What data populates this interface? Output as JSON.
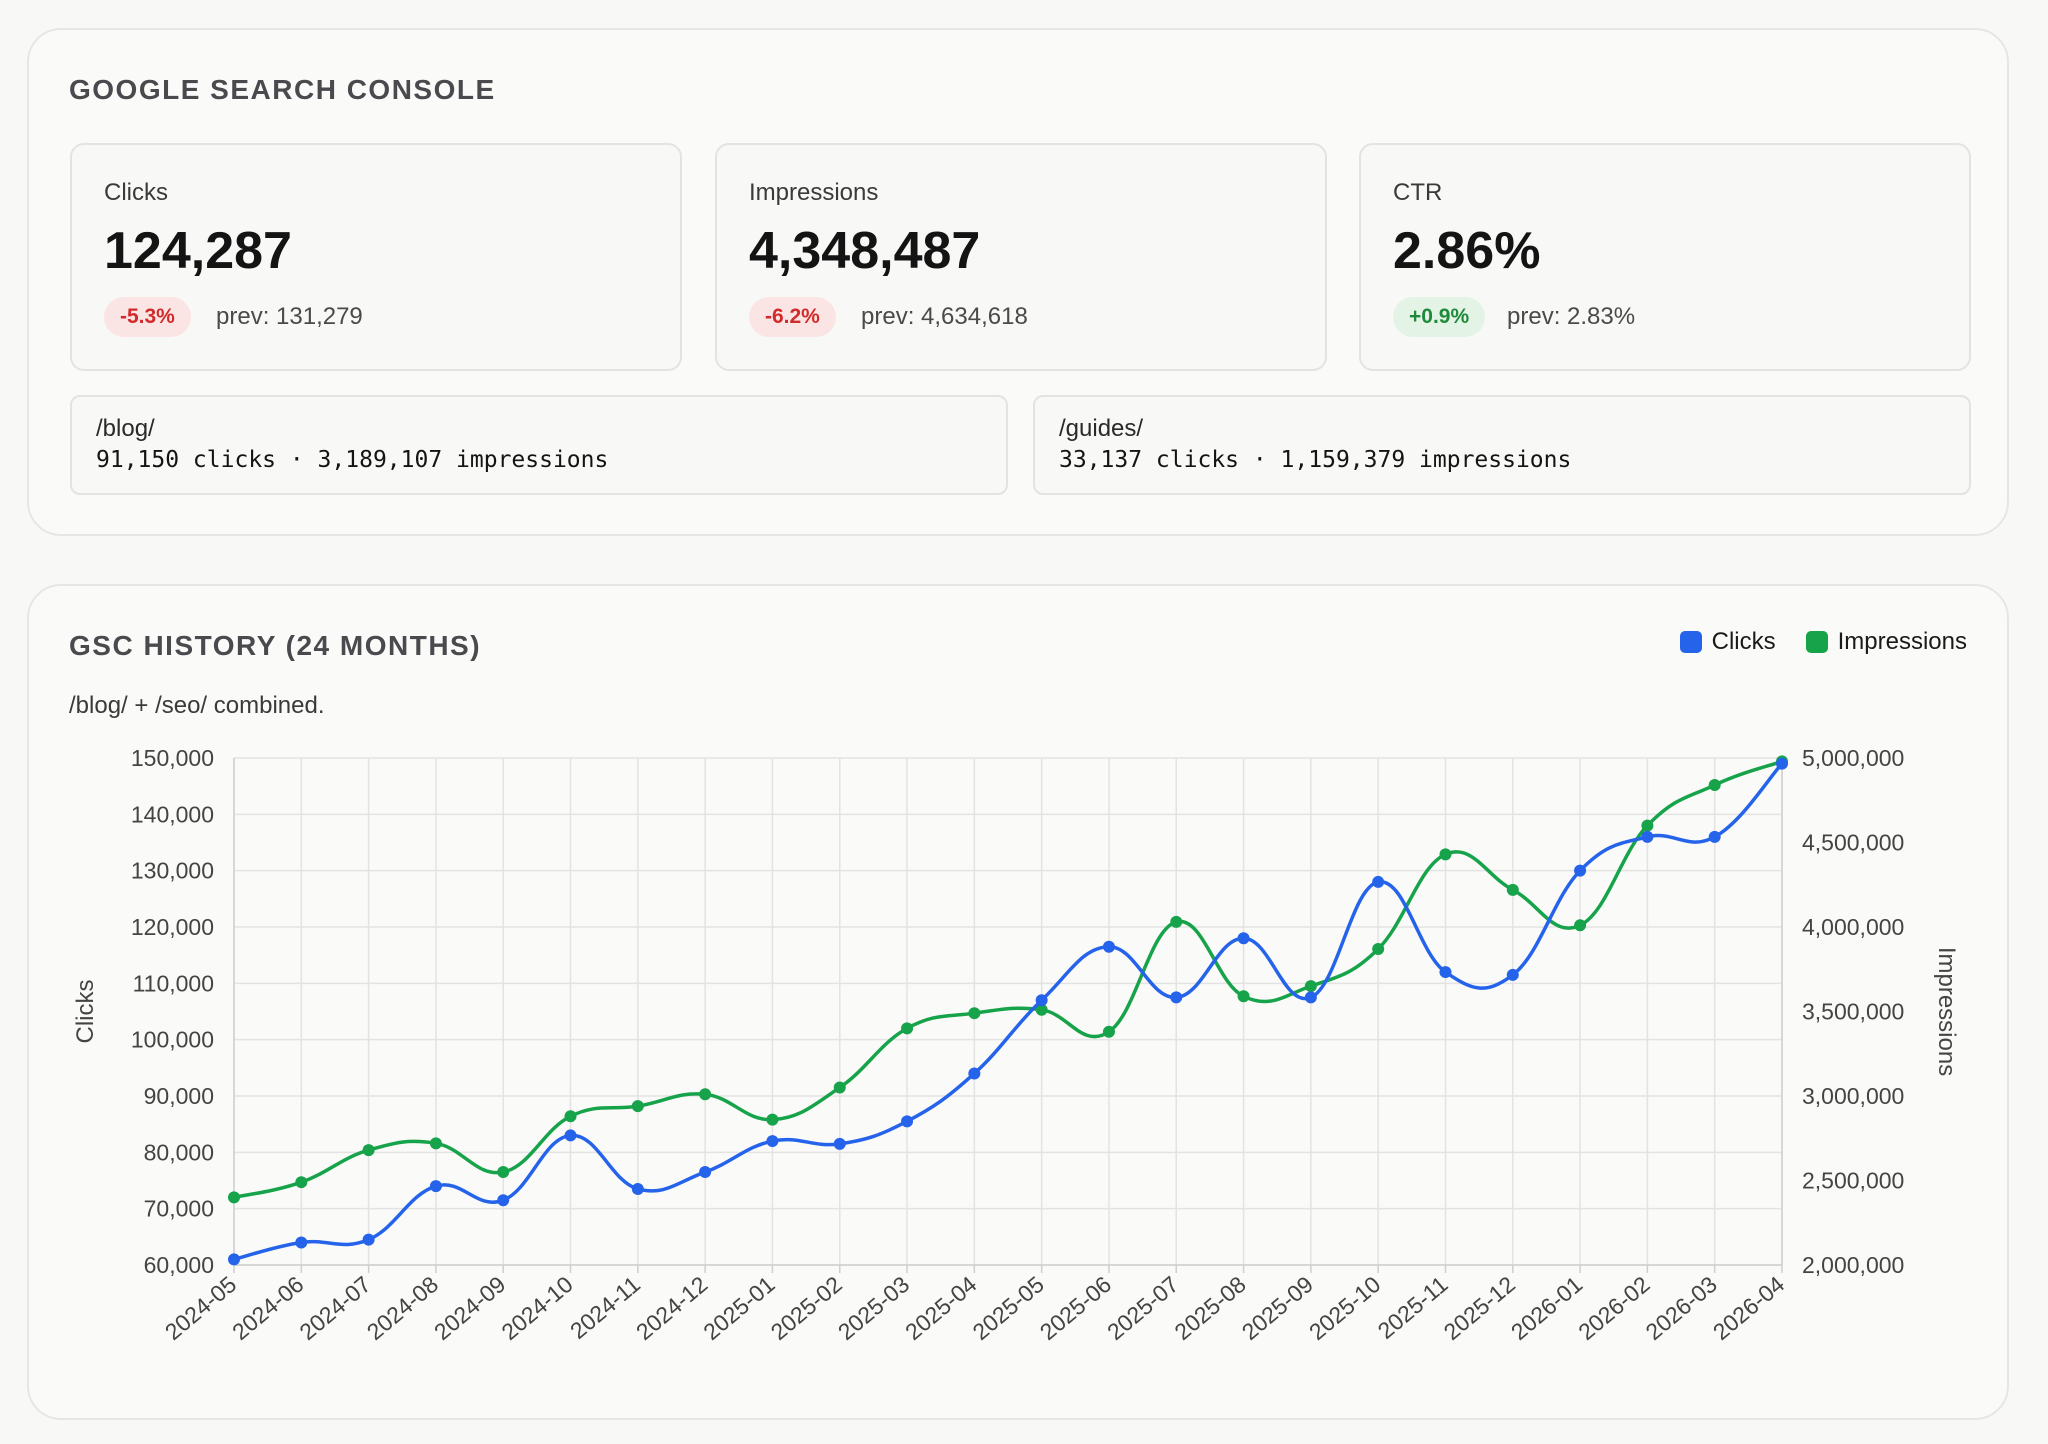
{
  "header": {
    "title": "GOOGLE SEARCH CONSOLE"
  },
  "kpis": [
    {
      "label": "Clicks",
      "value": "124,287",
      "delta": "-5.3%",
      "trend": "down",
      "prev": "prev: 131,279"
    },
    {
      "label": "Impressions",
      "value": "4,348,487",
      "delta": "-6.2%",
      "trend": "down",
      "prev": "prev: 4,634,618"
    },
    {
      "label": "CTR",
      "value": "2.86%",
      "delta": "+0.9%",
      "trend": "up",
      "prev": "prev: 2.83%"
    }
  ],
  "segments": [
    {
      "name": "/blog/",
      "stats": "91,150 clicks · 3,189,107 impressions"
    },
    {
      "name": "/guides/",
      "stats": "33,137 clicks · 1,159,379 impressions"
    }
  ],
  "history": {
    "title": "GSC HISTORY (24 MONTHS)",
    "subtitle": "/blog/ + /seo/ combined."
  },
  "colors": {
    "clicks": "#2563eb",
    "impressions": "#16a34a",
    "down": "#d22b2b",
    "up": "#1f8a3a"
  },
  "chart_data": {
    "type": "line",
    "x": [
      "2024-05",
      "2024-06",
      "2024-07",
      "2024-08",
      "2024-09",
      "2024-10",
      "2024-11",
      "2024-12",
      "2025-01",
      "2025-02",
      "2025-03",
      "2025-04",
      "2025-05",
      "2025-06",
      "2025-07",
      "2025-08",
      "2025-09",
      "2025-10",
      "2025-11",
      "2025-12",
      "2026-01",
      "2026-02",
      "2026-03",
      "2026-04"
    ],
    "series": [
      {
        "name": "Clicks",
        "axis": "left",
        "color": "#2563eb",
        "values": [
          61000,
          64000,
          64500,
          74000,
          71500,
          83000,
          73500,
          76500,
          82000,
          81500,
          85500,
          94000,
          107000,
          116500,
          107500,
          118000,
          107500,
          128000,
          112000,
          111500,
          130000,
          136000,
          136000,
          149000
        ]
      },
      {
        "name": "Impressions",
        "axis": "right",
        "color": "#16a34a",
        "values": [
          2400000,
          2490000,
          2680000,
          2720000,
          2550000,
          2880000,
          2940000,
          3010000,
          2860000,
          3050000,
          3400000,
          3490000,
          3510000,
          3380000,
          4030000,
          3590000,
          3650000,
          3870000,
          4430000,
          4220000,
          4010000,
          4600000,
          4840000,
          4980000
        ]
      }
    ],
    "y_left": {
      "label": "Clicks",
      "range": [
        60000,
        150000
      ],
      "ticks": [
        "150,000",
        "140,000",
        "130,000",
        "120,000",
        "110,000",
        "100,000",
        "90,000",
        "80,000",
        "70,000",
        "60,000"
      ]
    },
    "y_right": {
      "label": "Impressions",
      "range": [
        2000000,
        5000000
      ],
      "ticks": [
        "5,000,000",
        "4,500,000",
        "4,000,000",
        "3,500,000",
        "3,000,000",
        "2,500,000",
        "2,000,000"
      ]
    },
    "grid": true,
    "legend": "top-right"
  }
}
